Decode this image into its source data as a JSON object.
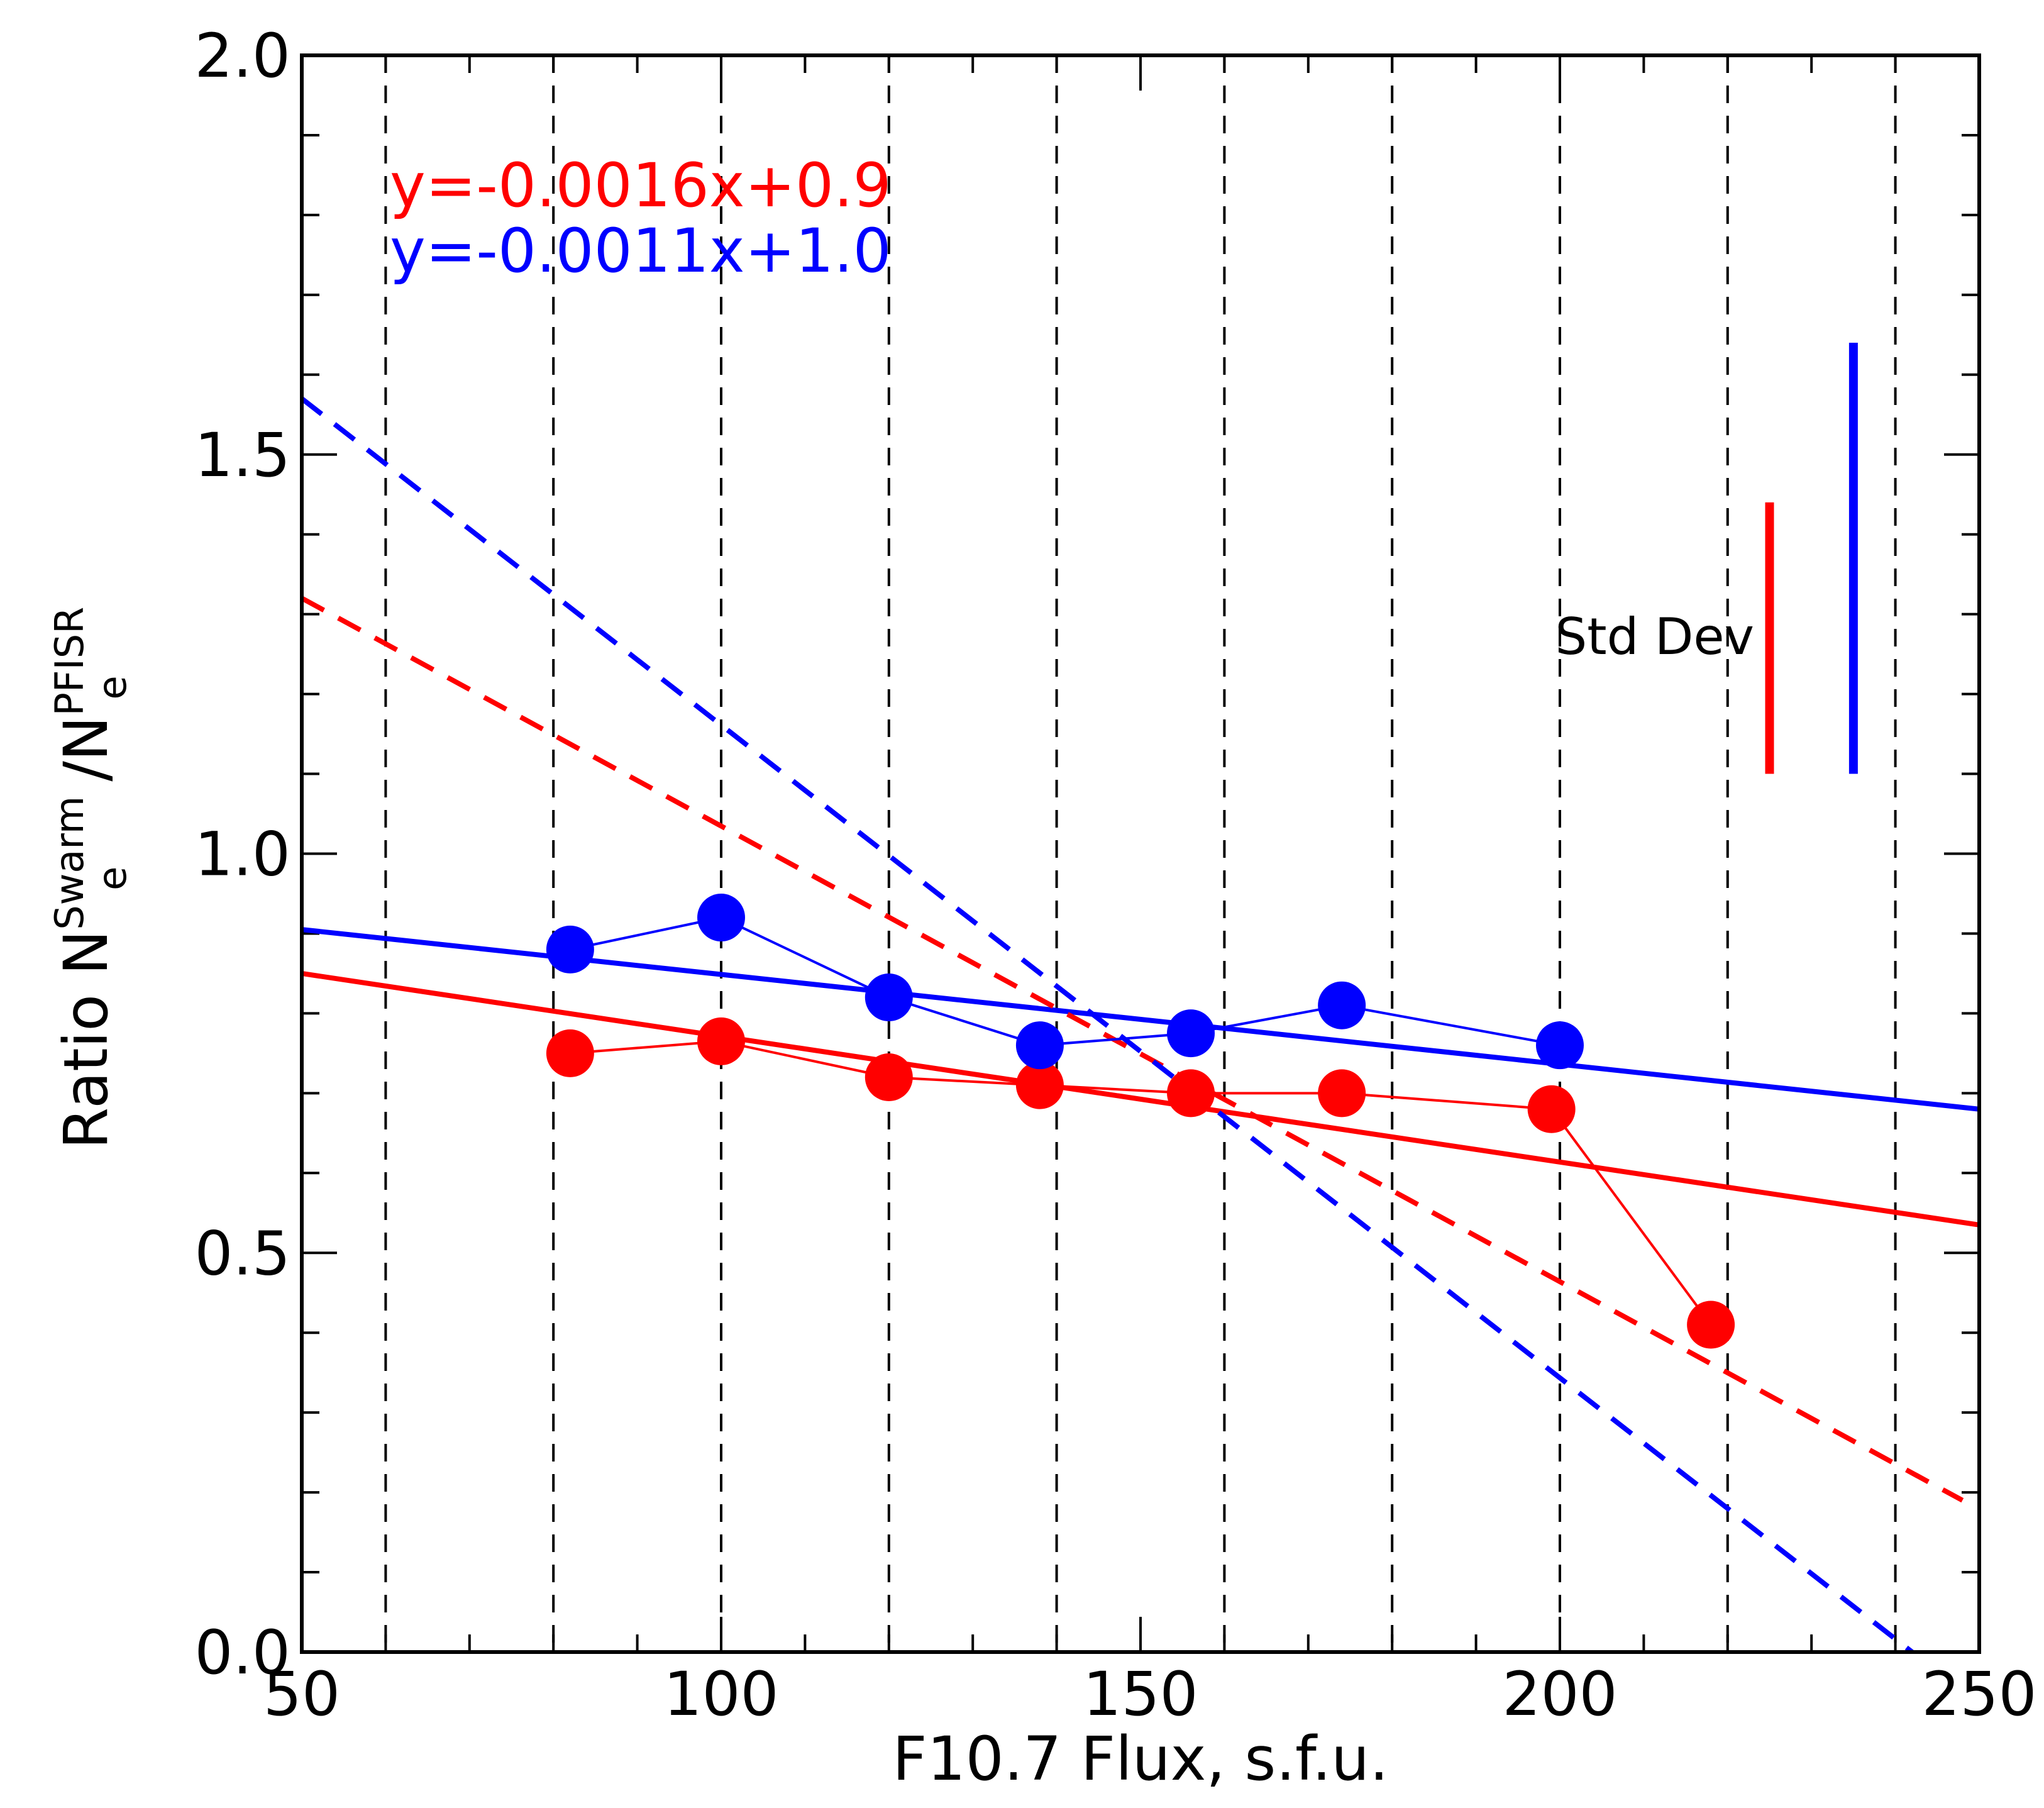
{
  "chart_data": {
    "type": "line",
    "xlabel": "F10.7 Flux, s.f.u.",
    "ylabel": {
      "prefix": "Ratio N",
      "sup1": "Swarm",
      "sub1": "e",
      "mid": "/N",
      "sup2": "PFISR",
      "sub2": "e"
    },
    "xlim": [
      50,
      250
    ],
    "ylim": [
      0.0,
      2.0
    ],
    "x_major_ticks": [
      50,
      100,
      150,
      200,
      250
    ],
    "x_tick_labels": [
      "50",
      "100",
      "150",
      "200",
      "250"
    ],
    "y_major_ticks": [
      0.0,
      0.5,
      1.0,
      1.5,
      2.0
    ],
    "y_tick_labels": [
      "0.0",
      "0.5",
      "1.0",
      "1.5",
      "2.0"
    ],
    "x_minor_step": 10,
    "y_minor_step": 0.1,
    "vertical_dashed_gridlines_x": [
      60,
      80,
      100,
      120,
      140,
      160,
      180,
      200,
      220,
      240
    ],
    "series": [
      {
        "name": "red",
        "color": "#ff0000",
        "x": [
          82,
          100,
          120,
          138,
          156,
          174,
          199,
          218
        ],
        "y": [
          0.75,
          0.765,
          0.72,
          0.71,
          0.7,
          0.7,
          0.68,
          0.41
        ]
      },
      {
        "name": "blue",
        "color": "#0000ff",
        "x": [
          82,
          100,
          120,
          138,
          156,
          174,
          200
        ],
        "y": [
          0.88,
          0.92,
          0.82,
          0.76,
          0.775,
          0.81,
          0.76
        ]
      }
    ],
    "fit_lines": [
      {
        "name": "red-fit",
        "color": "#ff0000",
        "style": "solid",
        "x": [
          50,
          250
        ],
        "y": [
          0.85,
          0.535
        ]
      },
      {
        "name": "blue-fit",
        "color": "#0000ff",
        "style": "solid",
        "x": [
          50,
          250
        ],
        "y": [
          0.905,
          0.68
        ]
      },
      {
        "name": "red-dashed",
        "color": "#ff0000",
        "style": "dashed",
        "x": [
          50,
          248
        ],
        "y": [
          1.32,
          0.19
        ]
      },
      {
        "name": "blue-dashed",
        "color": "#0000ff",
        "style": "dashed",
        "x": [
          50,
          242
        ],
        "y": [
          1.57,
          0.0
        ]
      }
    ],
    "equations": [
      {
        "text": "y=-0.0016x+0.9",
        "color": "#ff0000"
      },
      {
        "text": "y=-0.0011x+1.0",
        "color": "#0000ff"
      }
    ],
    "std_dev": {
      "label": "Std Dev",
      "bars": [
        {
          "name": "red",
          "color": "#ff0000",
          "x": 225,
          "y_bottom": 1.1,
          "y_top": 1.44
        },
        {
          "name": "blue",
          "color": "#0000ff",
          "x": 235,
          "y_bottom": 1.1,
          "y_top": 1.64
        }
      ]
    }
  }
}
